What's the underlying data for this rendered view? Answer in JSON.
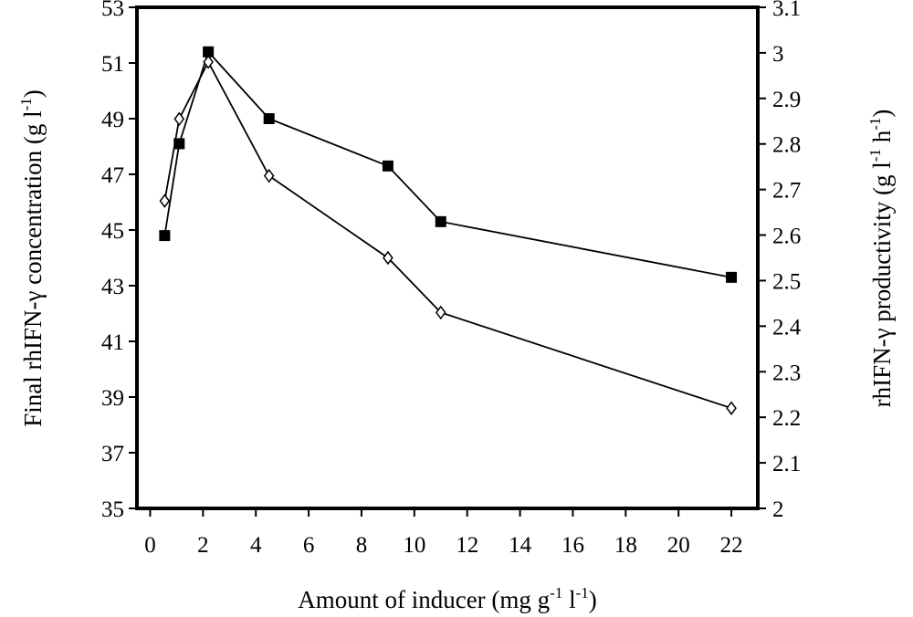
{
  "chart_data": {
    "type": "line",
    "title": "",
    "xlabel": "Amount of inducer (mg g-1 l-1)",
    "ylabel_left": "Final rhIFN-γ concentration (g l-1)",
    "ylabel_right": "rhIFN-γ productivity (g l-1 h-1)",
    "xlim": [
      -0.5,
      23
    ],
    "ylim_left": [
      35,
      53
    ],
    "ylim_right": [
      2.0,
      3.1
    ],
    "x_ticks": [
      "0",
      "2",
      "4",
      "6",
      "8",
      "10",
      "12",
      "14",
      "16",
      "18",
      "20",
      "22"
    ],
    "y_left_ticks": [
      "35",
      "37",
      "39",
      "41",
      "43",
      "45",
      "47",
      "49",
      "51",
      "53"
    ],
    "y_right_ticks": [
      "2",
      "2.1",
      "2.2",
      "2.3",
      "2.4",
      "2.5",
      "2.6",
      "2.7",
      "2.8",
      "2.9",
      "3",
      "3.1"
    ],
    "grid": false,
    "legend": "none",
    "series": [
      {
        "marker": "filled-square",
        "axis": "left",
        "color": "#000000",
        "x": [
          0.55,
          1.1,
          2.2,
          4.5,
          9.0,
          11.0,
          22.0
        ],
        "y": [
          44.8,
          48.1,
          51.4,
          49.0,
          47.3,
          45.3,
          43.3
        ]
      },
      {
        "marker": "open-diamond",
        "axis": "right",
        "color": "#000000",
        "x": [
          0.55,
          1.1,
          2.2,
          4.5,
          9.0,
          11.0,
          22.0
        ],
        "y": [
          2.675,
          2.855,
          2.98,
          2.73,
          2.55,
          2.43,
          2.22
        ]
      }
    ]
  }
}
